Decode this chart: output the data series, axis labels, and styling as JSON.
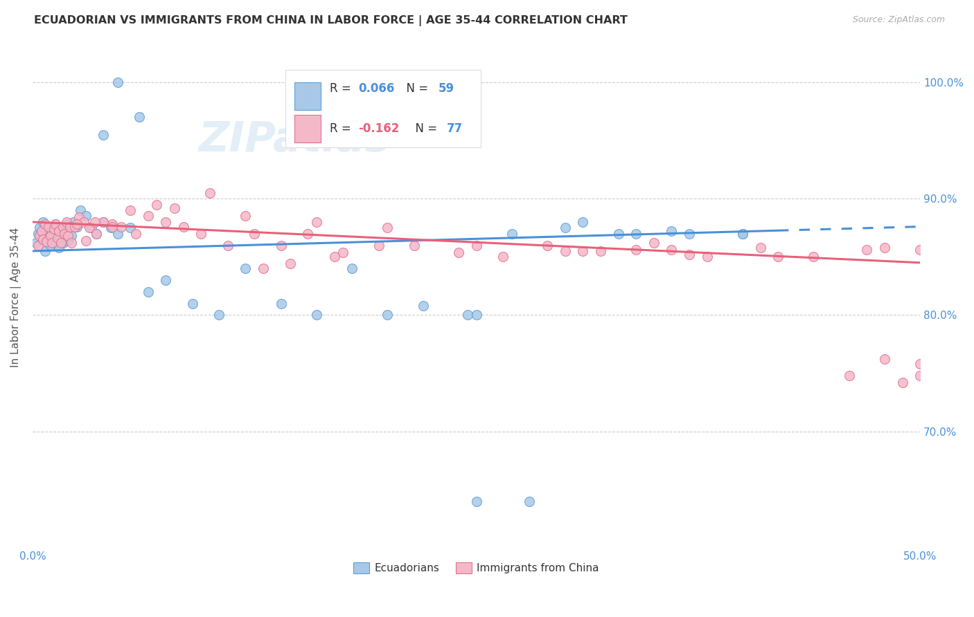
{
  "title": "ECUADORIAN VS IMMIGRANTS FROM CHINA IN LABOR FORCE | AGE 35-44 CORRELATION CHART",
  "source": "Source: ZipAtlas.com",
  "ylabel": "In Labor Force | Age 35-44",
  "xlim": [
    0.0,
    0.5
  ],
  "ylim": [
    0.6,
    1.03
  ],
  "yticks": [
    0.7,
    0.8,
    0.9,
    1.0
  ],
  "ytick_labels": [
    "70.0%",
    "80.0%",
    "90.0%",
    "100.0%"
  ],
  "xtick_labels": [
    "0.0%",
    "50.0%"
  ],
  "blue_r": "0.066",
  "blue_n": "59",
  "pink_r": "-0.162",
  "pink_n": "77",
  "blue_color": "#a8c8e8",
  "blue_edge": "#5a9fd4",
  "pink_color": "#f5b8c8",
  "pink_edge": "#e07090",
  "blue_line": "#4a90d9",
  "pink_line": "#e8607a",
  "watermark": "ZIPatlas",
  "blue_x": [
    0.002,
    0.003,
    0.004,
    0.005,
    0.006,
    0.007,
    0.007,
    0.008,
    0.009,
    0.01,
    0.011,
    0.012,
    0.013,
    0.014,
    0.015,
    0.015,
    0.016,
    0.017,
    0.018,
    0.019,
    0.02,
    0.021,
    0.022,
    0.023,
    0.025,
    0.027,
    0.03,
    0.033,
    0.036,
    0.04,
    0.044,
    0.048,
    0.055,
    0.065,
    0.075,
    0.09,
    0.105,
    0.12,
    0.14,
    0.16,
    0.18,
    0.2,
    0.22,
    0.245,
    0.27,
    0.3,
    0.33,
    0.36,
    0.4,
    0.25,
    0.28,
    0.31,
    0.25,
    0.04,
    0.06,
    0.048,
    0.34,
    0.37,
    0.4
  ],
  "blue_y": [
    0.862,
    0.87,
    0.875,
    0.865,
    0.88,
    0.872,
    0.855,
    0.868,
    0.876,
    0.86,
    0.874,
    0.862,
    0.878,
    0.866,
    0.872,
    0.858,
    0.876,
    0.862,
    0.87,
    0.878,
    0.864,
    0.876,
    0.868,
    0.88,
    0.876,
    0.89,
    0.885,
    0.875,
    0.87,
    0.88,
    0.875,
    0.87,
    0.875,
    0.82,
    0.83,
    0.81,
    0.8,
    0.84,
    0.81,
    0.8,
    0.84,
    0.8,
    0.808,
    0.8,
    0.87,
    0.875,
    0.87,
    0.872,
    0.87,
    0.64,
    0.64,
    0.88,
    0.8,
    0.955,
    0.97,
    1.0,
    0.87,
    0.87,
    0.87
  ],
  "pink_x": [
    0.003,
    0.004,
    0.005,
    0.006,
    0.007,
    0.008,
    0.009,
    0.01,
    0.011,
    0.012,
    0.013,
    0.014,
    0.015,
    0.016,
    0.017,
    0.018,
    0.019,
    0.02,
    0.021,
    0.022,
    0.024,
    0.026,
    0.029,
    0.032,
    0.036,
    0.04,
    0.045,
    0.05,
    0.058,
    0.065,
    0.075,
    0.085,
    0.095,
    0.11,
    0.125,
    0.14,
    0.155,
    0.175,
    0.195,
    0.215,
    0.24,
    0.265,
    0.29,
    0.32,
    0.35,
    0.38,
    0.41,
    0.44,
    0.47,
    0.5,
    0.055,
    0.07,
    0.08,
    0.1,
    0.12,
    0.16,
    0.2,
    0.25,
    0.3,
    0.36,
    0.42,
    0.48,
    0.03,
    0.025,
    0.035,
    0.045,
    0.13,
    0.145,
    0.17,
    0.31,
    0.34,
    0.37,
    0.5,
    0.5,
    0.49,
    0.48,
    0.46
  ],
  "pink_y": [
    0.86,
    0.868,
    0.872,
    0.865,
    0.878,
    0.863,
    0.876,
    0.868,
    0.862,
    0.874,
    0.878,
    0.866,
    0.872,
    0.862,
    0.876,
    0.87,
    0.88,
    0.868,
    0.876,
    0.862,
    0.876,
    0.884,
    0.88,
    0.875,
    0.87,
    0.88,
    0.878,
    0.876,
    0.87,
    0.885,
    0.88,
    0.876,
    0.87,
    0.86,
    0.87,
    0.86,
    0.87,
    0.854,
    0.86,
    0.86,
    0.854,
    0.85,
    0.86,
    0.855,
    0.862,
    0.85,
    0.858,
    0.85,
    0.856,
    0.856,
    0.89,
    0.895,
    0.892,
    0.905,
    0.885,
    0.88,
    0.875,
    0.86,
    0.855,
    0.856,
    0.85,
    0.858,
    0.864,
    0.878,
    0.88,
    0.876,
    0.84,
    0.844,
    0.85,
    0.855,
    0.856,
    0.852,
    0.748,
    0.758,
    0.742,
    0.762,
    0.748
  ]
}
